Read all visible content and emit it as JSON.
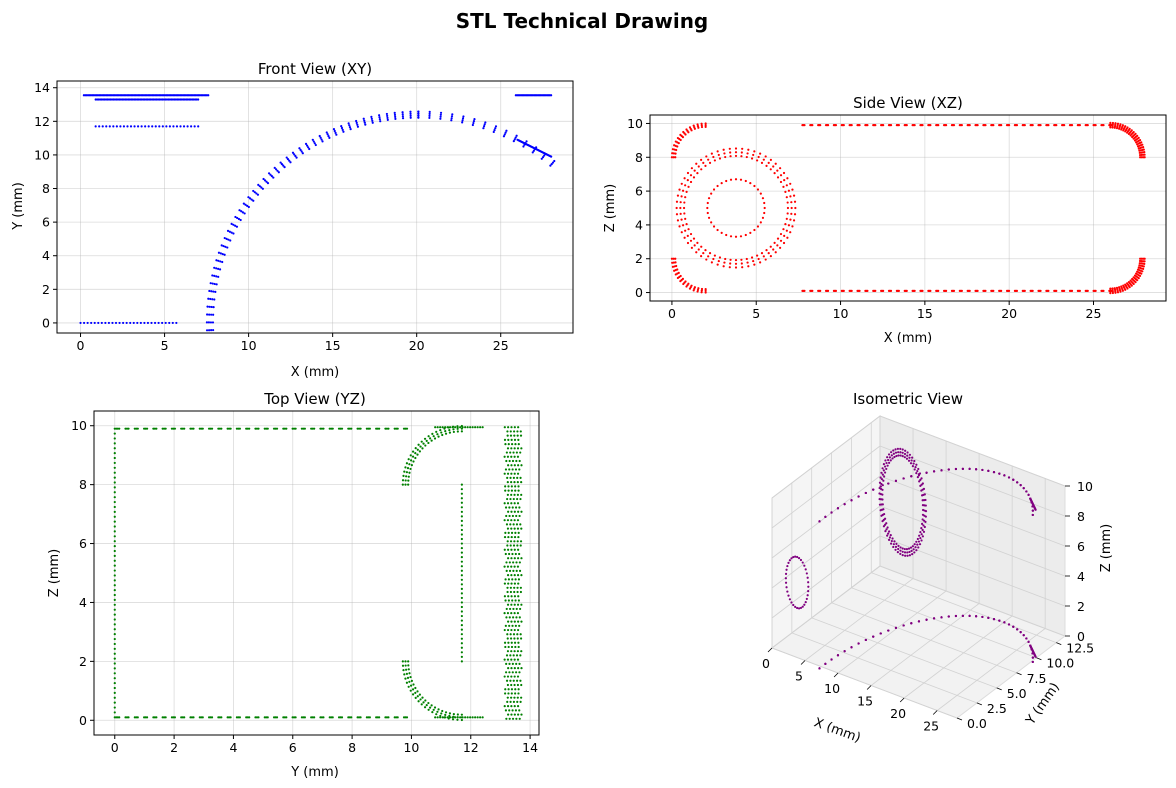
{
  "suptitle": "STL Technical Drawing",
  "chart_data": [
    {
      "type": "scatter",
      "title": "Front View (XY)",
      "xlabel": "X (mm)",
      "ylabel": "Y (mm)",
      "xlim": [
        -1.4,
        29.3
      ],
      "ylim": [
        -0.6,
        14.4
      ],
      "xticks": [
        0,
        5,
        10,
        15,
        20,
        25
      ],
      "yticks": [
        0,
        2,
        4,
        6,
        8,
        10,
        12,
        14
      ],
      "grid": true,
      "color": "#0000ff",
      "series": [
        {
          "shape": "segment",
          "x0": 0.2,
          "x1": 7.6,
          "y0": 13.55,
          "y1": 13.55,
          "n": 90
        },
        {
          "shape": "segment",
          "x0": 0.9,
          "x1": 7.0,
          "y0": 13.3,
          "y1": 13.3,
          "n": 70
        },
        {
          "shape": "segment",
          "x0": 0.9,
          "x1": 7.0,
          "y0": 11.7,
          "y1": 11.7,
          "n": 30
        },
        {
          "shape": "segment",
          "x0": 0.0,
          "x1": 5.7,
          "y0": 0.0,
          "y1": 0.0,
          "n": 28
        },
        {
          "shape": "segment",
          "x0": 25.9,
          "x1": 28.0,
          "y0": 13.55,
          "y1": 13.55,
          "n": 28
        },
        {
          "shape": "arc",
          "cx": 20.1,
          "cy": 0.0,
          "r": 12.4,
          "a0": 182,
          "a1": 90,
          "n": 44,
          "pts": 4,
          "dr": 0.12
        },
        {
          "shape": "arc",
          "cx": 20.1,
          "cy": 0.0,
          "r": 12.4,
          "a0": 90,
          "a1": 50,
          "n": 14,
          "pts": 4,
          "dr": 0.12
        },
        {
          "shape": "segment",
          "x0": 26.0,
          "x1": 28.0,
          "y0": 10.9,
          "y1": 9.9,
          "n": 40
        }
      ]
    },
    {
      "type": "scatter",
      "title": "Side View (XZ)",
      "xlabel": "X (mm)",
      "ylabel": "Z (mm)",
      "xlim": [
        -1.3,
        29.3
      ],
      "ylim": [
        -0.5,
        10.5
      ],
      "xticks": [
        0,
        5,
        10,
        15,
        20,
        25
      ],
      "yticks": [
        0,
        2,
        4,
        6,
        8,
        10
      ],
      "grid": true,
      "color": "#ff0000",
      "series": [
        {
          "shape": "ring",
          "cx": 3.8,
          "cy": 5.0,
          "r": 1.7,
          "n": 36
        },
        {
          "shape": "ring",
          "cx": 3.8,
          "cy": 5.0,
          "r": 3.3,
          "n": 60,
          "pts": 3,
          "dr": 0.22
        },
        {
          "shape": "arc",
          "cx": 2.0,
          "cy": 8.0,
          "r": 1.9,
          "a0": 90,
          "a1": 180,
          "n": 14,
          "pts": 3,
          "dr": 0.1
        },
        {
          "shape": "arc",
          "cx": 2.0,
          "cy": 2.0,
          "r": 1.9,
          "a0": 180,
          "a1": 270,
          "n": 14,
          "pts": 3,
          "dr": 0.1
        },
        {
          "shape": "segment",
          "x0": 7.8,
          "x1": 26.0,
          "y0": 9.9,
          "y1": 9.9,
          "n": 40,
          "pts": 3,
          "dr": 0.06
        },
        {
          "shape": "segment",
          "x0": 7.8,
          "x1": 26.0,
          "y0": 0.1,
          "y1": 0.1,
          "n": 40,
          "pts": 3,
          "dr": 0.06
        },
        {
          "shape": "arc",
          "cx": 26.0,
          "cy": 8.0,
          "r": 1.9,
          "a0": 90,
          "a1": 0,
          "n": 22,
          "pts": 4,
          "dr": 0.09
        },
        {
          "shape": "arc",
          "cx": 26.0,
          "cy": 2.0,
          "r": 1.9,
          "a0": 0,
          "a1": -90,
          "n": 22,
          "pts": 4,
          "dr": 0.09
        }
      ]
    },
    {
      "type": "scatter",
      "title": "Top View (YZ)",
      "xlabel": "Y (mm)",
      "ylabel": "Z (mm)",
      "xlim": [
        -0.7,
        14.3
      ],
      "ylim": [
        -0.5,
        10.5
      ],
      "xticks": [
        0,
        2,
        4,
        6,
        8,
        10,
        12,
        14
      ],
      "yticks": [
        0,
        2,
        4,
        6,
        8,
        10
      ],
      "grid": true,
      "color": "#008000",
      "series": [
        {
          "shape": "vsegment",
          "x": 0.0,
          "y0": 0.1,
          "y1": 9.9,
          "n": 60
        },
        {
          "shape": "segment",
          "x0": 0.1,
          "x1": 9.8,
          "y0": 9.9,
          "y1": 9.9,
          "n": 32,
          "pts": 3,
          "dr": 0.05
        },
        {
          "shape": "segment",
          "x0": 0.1,
          "x1": 9.8,
          "y0": 0.1,
          "y1": 0.1,
          "n": 32,
          "pts": 3,
          "dr": 0.05
        },
        {
          "shape": "arc",
          "cx": 11.7,
          "cy": 8.0,
          "r": 1.9,
          "a0": 180,
          "a1": 90,
          "n": 22,
          "pts": 3,
          "dr": 0.09
        },
        {
          "shape": "arc",
          "cx": 11.7,
          "cy": 2.0,
          "r": 1.9,
          "a0": 180,
          "a1": 270,
          "n": 22,
          "pts": 3,
          "dr": 0.09
        },
        {
          "shape": "segment",
          "x0": 10.8,
          "x1": 12.4,
          "y0": 9.95,
          "y1": 9.95,
          "n": 20
        },
        {
          "shape": "segment",
          "x0": 10.8,
          "x1": 12.4,
          "y0": 0.1,
          "y1": 0.1,
          "n": 20
        },
        {
          "shape": "vsegment",
          "x": 11.7,
          "y0": 2.0,
          "y1": 8.0,
          "n": 40
        },
        {
          "shape": "band",
          "x0": 13.2,
          "x1": 13.65,
          "y0": 0.05,
          "y1": 9.95,
          "n": 70,
          "pts": 5
        }
      ]
    },
    {
      "type": "scatter",
      "title": "Isometric View",
      "xlabel": "X (mm)",
      "ylabel": "Y (mm)",
      "zlabel": "Z (mm)",
      "xticks": [
        0,
        5,
        10,
        15,
        20,
        25
      ],
      "yticks": [
        0.0,
        2.5,
        5.0,
        7.5,
        10.0,
        12.5
      ],
      "zticks": [
        0,
        2,
        4,
        6,
        8,
        10
      ],
      "xtick_labels": [
        "0",
        "5",
        "10",
        "15",
        "20",
        "25"
      ],
      "ytick_labels": [
        "0.0",
        "2.5",
        "5.0",
        "7.5",
        "10.0",
        "12.5"
      ],
      "ztick_labels": [
        "0",
        "2",
        "4",
        "6",
        "8",
        "10"
      ],
      "xlim": [
        0,
        28
      ],
      "ylim": [
        0,
        13.6
      ],
      "zlim": [
        0,
        10
      ],
      "color": "#800080",
      "series": [
        {
          "shape": "ring3d",
          "cx": 3.8,
          "cz": 5.0,
          "y": 0.0,
          "r": 1.7,
          "n": 36
        },
        {
          "shape": "ring3d",
          "cx": 3.8,
          "cz": 5.0,
          "y": 13.3,
          "r": 3.3,
          "n": 60,
          "pts": 3,
          "dr": 0.22
        },
        {
          "shape": "arc3d",
          "cx": 20.1,
          "cy": 0.0,
          "r": 12.4,
          "z": 0.1,
          "a0": 182,
          "a1": 48,
          "n": 40,
          "pts": 3
        },
        {
          "shape": "arc3d",
          "cx": 20.1,
          "cy": 0.0,
          "r": 12.4,
          "z": 9.9,
          "a0": 182,
          "a1": 48,
          "n": 40,
          "pts": 3
        },
        {
          "shape": "seg3d",
          "x0": 26.0,
          "y0": 10.9,
          "x1": 28.0,
          "y1": 9.9,
          "z0": 0.1,
          "z1": 9.9,
          "n": 24
        }
      ]
    }
  ]
}
